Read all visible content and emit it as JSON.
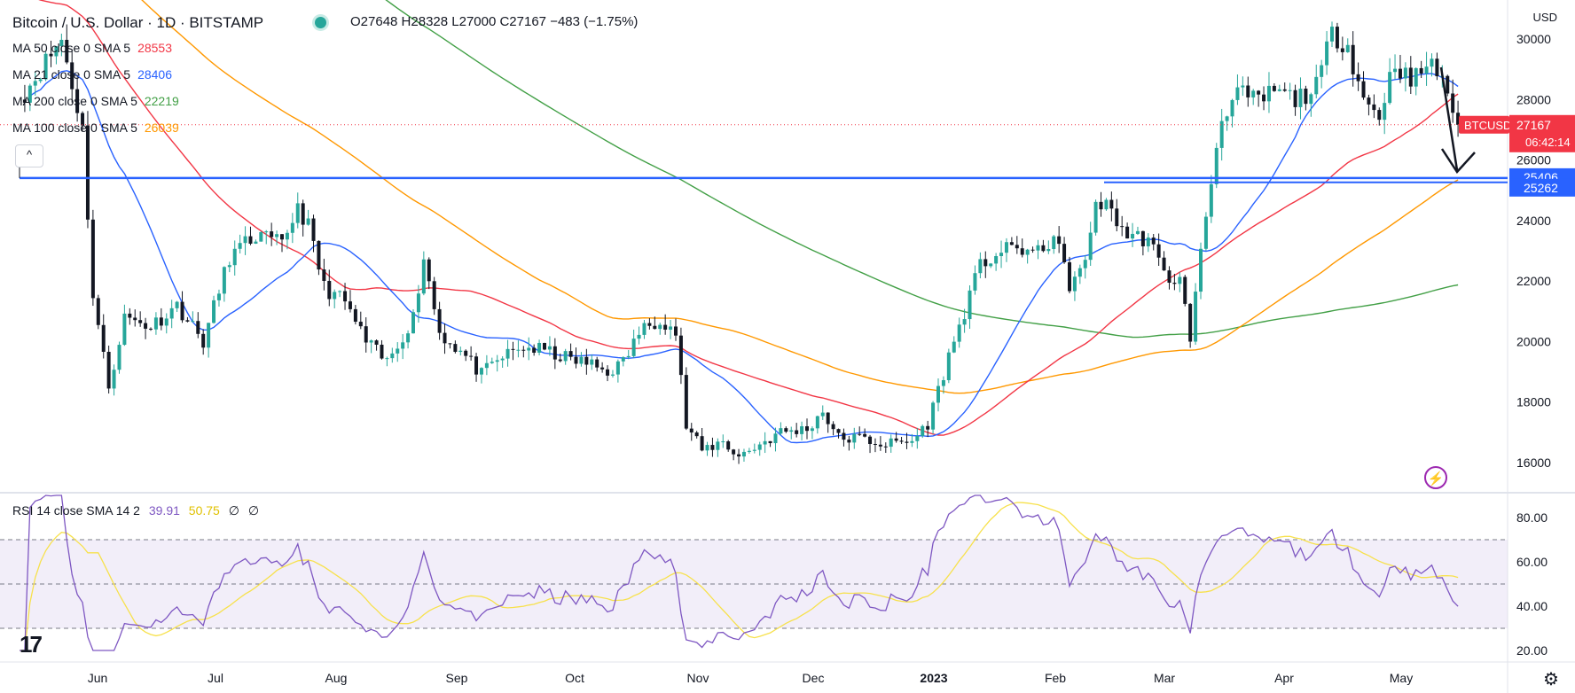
{
  "header": {
    "title": "Bitcoin / U.S. Dollar · 1D · BITSTAMP",
    "ohlc": "O27648 H28328 L27000 C27167 −483 (−1.75%)",
    "currency": "USD",
    "collapse_label": "^"
  },
  "colors": {
    "up": "#26a69a",
    "down": "#131722",
    "ma50": "#f23645",
    "ma21": "#2962ff",
    "ma200": "#43a047",
    "ma100": "#ff9800",
    "rsi": "#7e57c2",
    "rsi_ma": "#f7e14c",
    "support": "#2962ff",
    "price_label": "#f23645"
  },
  "ma_legend": [
    {
      "label": "MA 50 close 0 SMA 5",
      "value": "28553",
      "color": "#f23645"
    },
    {
      "label": "MA 21 close 0 SMA 5",
      "value": "28406",
      "color": "#2962ff"
    },
    {
      "label": "MA 200 close 0 SMA 5",
      "value": "22219",
      "color": "#43a047"
    },
    {
      "label": "MA 100 close 0 SMA 5",
      "value": "26039",
      "color": "#ff9800"
    }
  ],
  "rsi_legend": {
    "label": "RSI 14 close SMA 14 2",
    "rsi": "39.91",
    "ma": "50.75",
    "a": "∅",
    "b": "∅"
  },
  "price_labels": {
    "symbol": "BTCUSD",
    "last": "27167",
    "countdown": "06:42:14",
    "level1": "25406",
    "level2": "25262"
  },
  "chart_data": {
    "type": "candlestick",
    "title": "Bitcoin / U.S. Dollar · 1D · BITSTAMP",
    "x_ticks": [
      "Jun",
      "Jul",
      "Aug",
      "Sep",
      "Oct",
      "Nov",
      "Dec",
      "2023",
      "Feb",
      "Mar",
      "Apr",
      "May"
    ],
    "price_axis": {
      "ylim": [
        15000,
        31000
      ],
      "ticks": [
        "16000",
        "18000",
        "20000",
        "22000",
        "24000",
        "26000",
        "28000",
        "30000"
      ]
    },
    "rsi_axis": {
      "ylim": [
        16,
        92
      ],
      "ticks": [
        "20.00",
        "40.00",
        "60.00",
        "80.00"
      ],
      "band": [
        30,
        70
      ],
      "mid": 50
    },
    "horizontal_levels": [
      25406,
      25262
    ],
    "last_price": 27167,
    "price_anchors": [
      [
        0,
        28000
      ],
      [
        8,
        30000
      ],
      [
        12,
        27000
      ],
      [
        14,
        21500
      ],
      [
        17,
        18500
      ],
      [
        20,
        20800
      ],
      [
        25,
        20500
      ],
      [
        30,
        21200
      ],
      [
        35,
        20000
      ],
      [
        40,
        22800
      ],
      [
        45,
        23500
      ],
      [
        50,
        23200
      ],
      [
        53,
        24500
      ],
      [
        55,
        23800
      ],
      [
        58,
        21800
      ],
      [
        62,
        21300
      ],
      [
        66,
        20000
      ],
      [
        70,
        19300
      ],
      [
        75,
        20800
      ],
      [
        77,
        22800
      ],
      [
        80,
        20300
      ],
      [
        85,
        19500
      ],
      [
        88,
        18900
      ],
      [
        92,
        19500
      ],
      [
        96,
        19800
      ],
      [
        100,
        19700
      ],
      [
        105,
        19400
      ],
      [
        108,
        19300
      ],
      [
        112,
        19000
      ],
      [
        115,
        19300
      ],
      [
        118,
        20300
      ],
      [
        122,
        20800
      ],
      [
        125,
        20300
      ],
      [
        127,
        17200
      ],
      [
        130,
        16400
      ],
      [
        134,
        16700
      ],
      [
        137,
        16200
      ],
      [
        140,
        16500
      ],
      [
        145,
        17000
      ],
      [
        150,
        17100
      ],
      [
        153,
        17700
      ],
      [
        156,
        16800
      ],
      [
        160,
        16800
      ],
      [
        165,
        16600
      ],
      [
        170,
        16700
      ],
      [
        173,
        17300
      ],
      [
        177,
        19500
      ],
      [
        180,
        21000
      ],
      [
        183,
        22500
      ],
      [
        186,
        22900
      ],
      [
        190,
        23100
      ],
      [
        194,
        22900
      ],
      [
        197,
        23500
      ],
      [
        200,
        21900
      ],
      [
        203,
        22500
      ],
      [
        205,
        24700
      ],
      [
        208,
        24300
      ],
      [
        211,
        23500
      ],
      [
        215,
        23400
      ],
      [
        218,
        22200
      ],
      [
        221,
        22000
      ],
      [
        223,
        20200
      ],
      [
        226,
        24200
      ],
      [
        229,
        27500
      ],
      [
        232,
        28200
      ],
      [
        236,
        27900
      ],
      [
        239,
        28300
      ],
      [
        243,
        28000
      ],
      [
        247,
        28400
      ],
      [
        250,
        30200
      ],
      [
        253,
        29800
      ],
      [
        256,
        28000
      ],
      [
        259,
        27500
      ],
      [
        262,
        29300
      ],
      [
        265,
        28500
      ],
      [
        268,
        29200
      ],
      [
        271,
        28800
      ],
      [
        274,
        27167
      ]
    ],
    "series": [
      {
        "name": "MA 50 close 0 SMA 5",
        "value": 28553
      },
      {
        "name": "MA 21 close 0 SMA 5",
        "value": 28406
      },
      {
        "name": "MA 200 close 0 SMA 5",
        "value": 22219
      },
      {
        "name": "MA 100 close 0 SMA 5",
        "value": 26039
      },
      {
        "name": "RSI 14 close",
        "value": 39.91
      },
      {
        "name": "SMA 14",
        "value": 50.75
      }
    ]
  }
}
